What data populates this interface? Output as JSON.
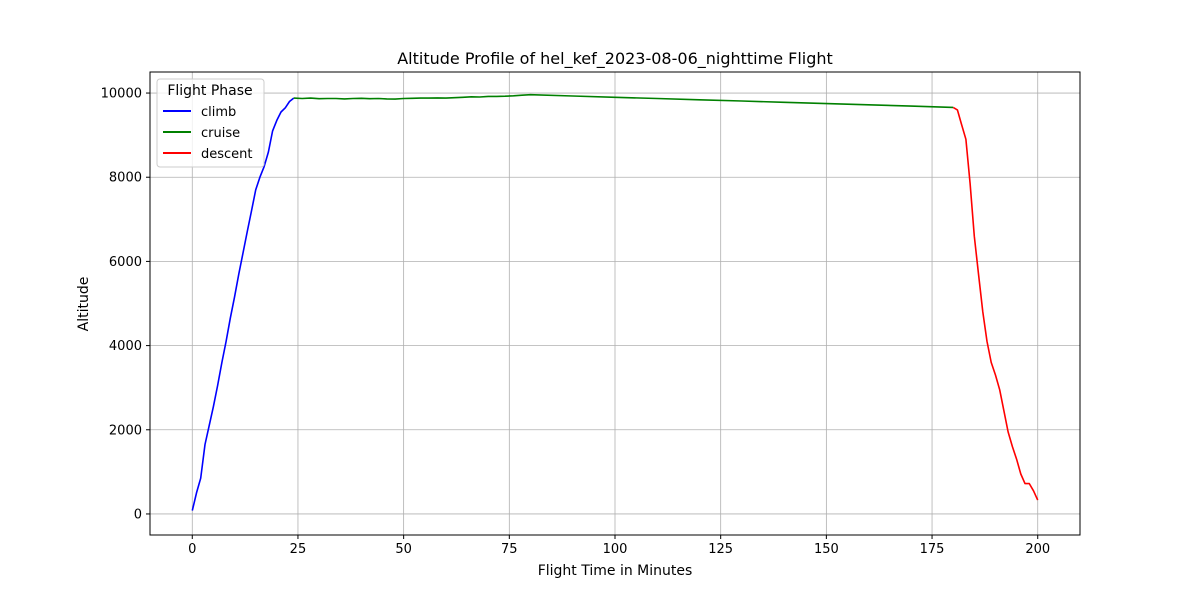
{
  "chart_data": {
    "type": "line",
    "title": "Altitude Profile of hel_kef_2023-08-06_nighttime Flight",
    "xlabel": "Flight Time in Minutes",
    "ylabel": "Altitude",
    "xlim": [
      -10,
      210
    ],
    "ylim": [
      -500,
      10500
    ],
    "xticks": [
      0,
      25,
      50,
      75,
      100,
      125,
      150,
      175,
      200
    ],
    "yticks": [
      0,
      2000,
      4000,
      6000,
      8000,
      10000
    ],
    "grid": true,
    "legend": {
      "title": "Flight Phase",
      "position": "top-left"
    },
    "series": [
      {
        "name": "climb",
        "color": "#0000ff",
        "x": [
          0,
          1,
          2,
          3,
          4,
          5,
          6,
          7,
          8,
          9,
          10,
          11,
          12,
          13,
          14,
          15,
          16,
          17,
          18,
          19,
          20,
          21,
          22,
          23,
          24
        ],
        "y": [
          80,
          500,
          850,
          1650,
          2100,
          2550,
          3050,
          3600,
          4100,
          4650,
          5150,
          5700,
          6200,
          6700,
          7200,
          7700,
          8000,
          8250,
          8600,
          9100,
          9350,
          9550,
          9650,
          9800,
          9880
        ]
      },
      {
        "name": "cruise",
        "color": "#008000",
        "x": [
          24,
          26,
          28,
          30,
          32,
          34,
          36,
          38,
          40,
          42,
          44,
          46,
          48,
          50,
          52,
          54,
          56,
          58,
          60,
          62,
          64,
          66,
          68,
          70,
          72,
          74,
          76,
          78,
          80,
          90,
          100,
          110,
          120,
          130,
          140,
          150,
          160,
          170,
          180
        ],
        "y": [
          9880,
          9870,
          9880,
          9865,
          9870,
          9870,
          9860,
          9870,
          9875,
          9865,
          9870,
          9860,
          9855,
          9870,
          9875,
          9880,
          9880,
          9885,
          9880,
          9890,
          9900,
          9910,
          9905,
          9920,
          9920,
          9925,
          9935,
          9950,
          9960,
          9930,
          9900,
          9870,
          9840,
          9810,
          9780,
          9750,
          9720,
          9690,
          9660
        ]
      },
      {
        "name": "descent",
        "color": "#ff0000",
        "x": [
          180,
          181,
          182,
          183,
          184,
          185,
          186,
          187,
          188,
          189,
          190,
          191,
          192,
          193,
          194,
          195,
          196,
          197,
          198,
          199,
          200
        ],
        "y": [
          9660,
          9600,
          9250,
          8900,
          7850,
          6600,
          5700,
          4800,
          4100,
          3600,
          3300,
          2950,
          2450,
          1950,
          1600,
          1300,
          950,
          720,
          720,
          550,
          330
        ]
      }
    ]
  }
}
